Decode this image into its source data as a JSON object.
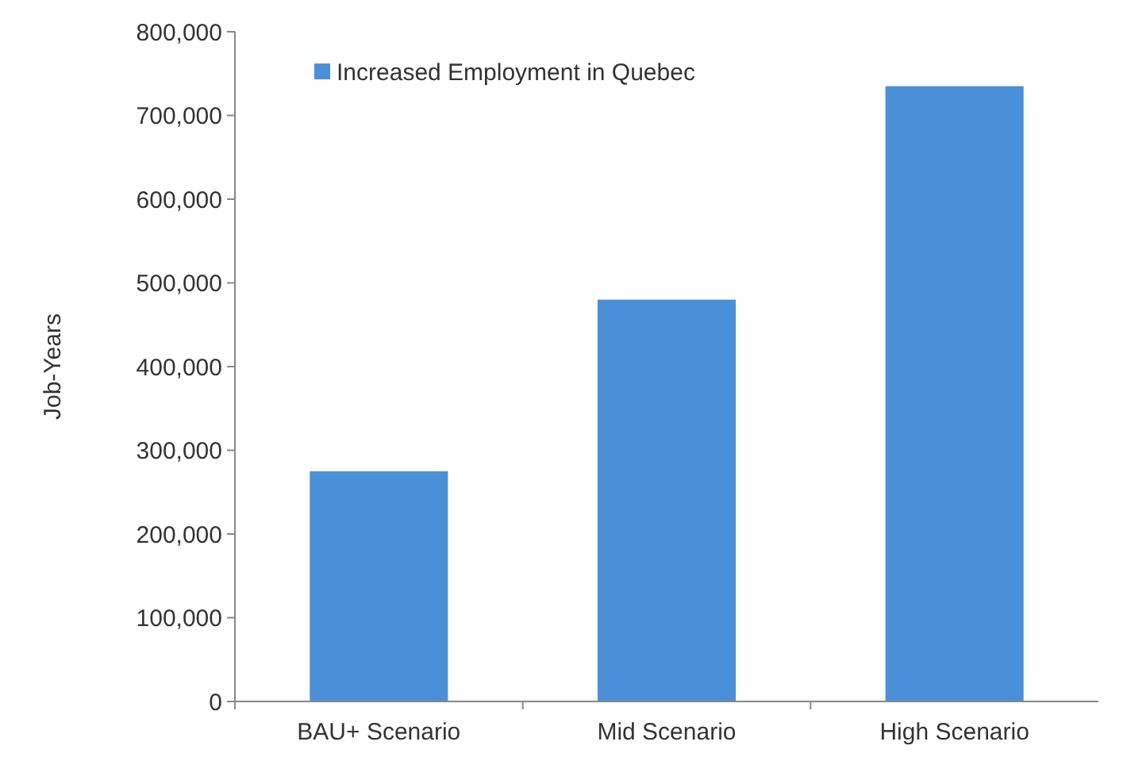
{
  "chart_data": {
    "type": "bar",
    "ylabel": "Job-Years",
    "categories": [
      "BAU+ Scenario",
      "Mid Scenario",
      "High Scenario"
    ],
    "series": [
      {
        "name": "Increased Employment in Quebec",
        "color": "#4a90d9",
        "values": [
          275000,
          480000,
          735000
        ]
      }
    ],
    "ylim": [
      0,
      800000
    ],
    "yticks": [
      {
        "value": 0,
        "label": "0"
      },
      {
        "value": 100000,
        "label": "100,000"
      },
      {
        "value": 200000,
        "label": "200,000"
      },
      {
        "value": 300000,
        "label": "300,000"
      },
      {
        "value": 400000,
        "label": "400,000"
      },
      {
        "value": 500000,
        "label": "500,000"
      },
      {
        "value": 600000,
        "label": "600,000"
      },
      {
        "value": 700000,
        "label": "700,000"
      },
      {
        "value": 800000,
        "label": "800,000"
      }
    ],
    "legend": "top left"
  }
}
